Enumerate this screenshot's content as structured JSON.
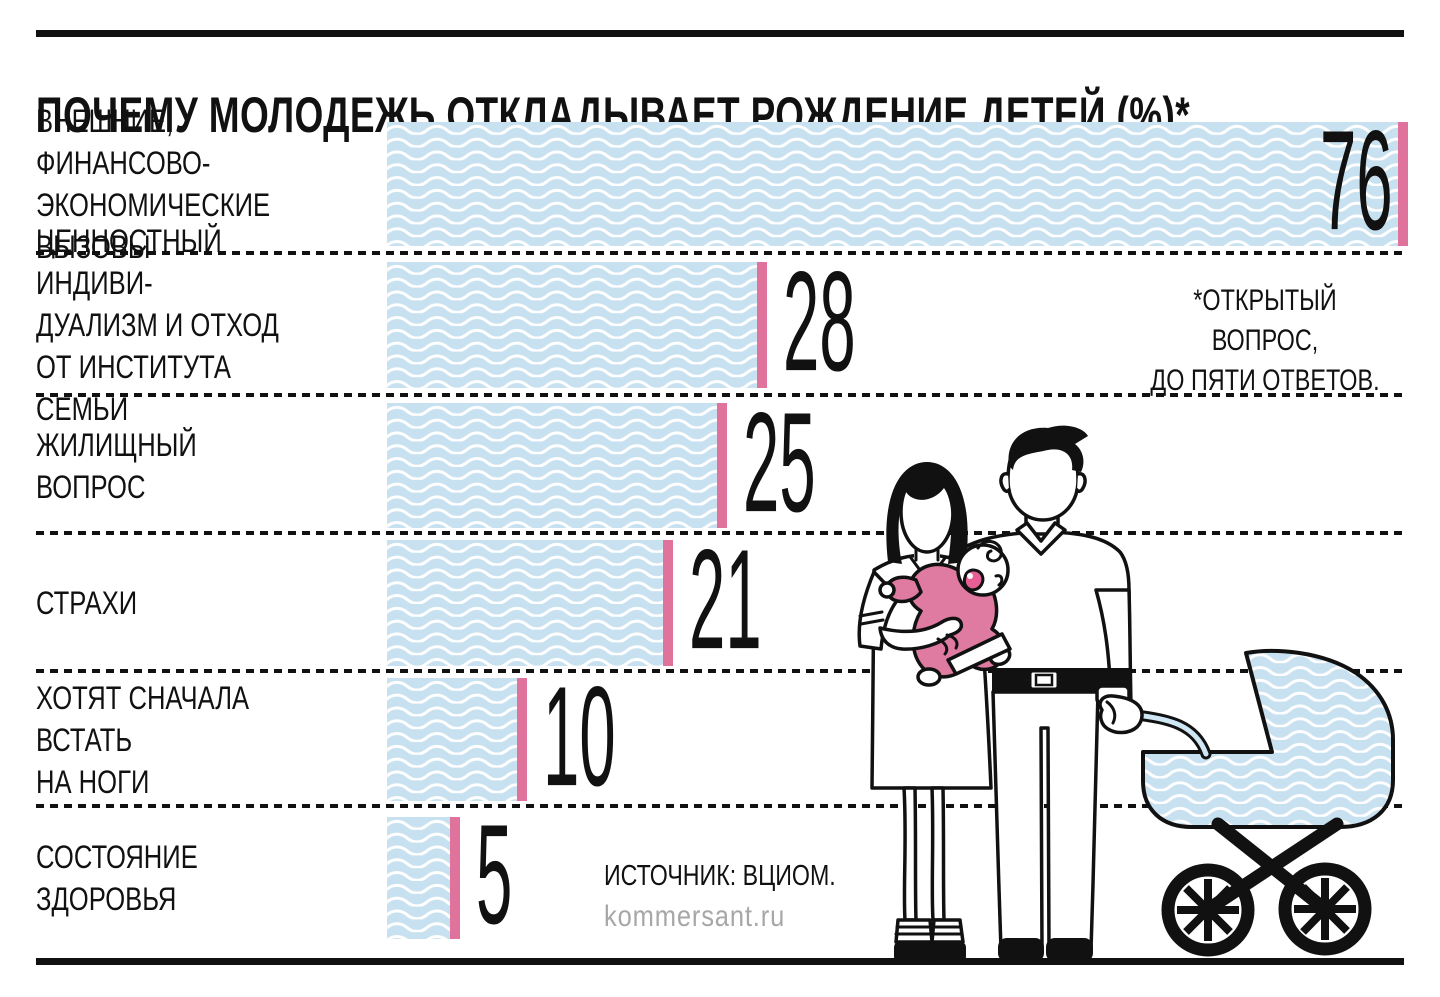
{
  "header": {
    "title": "ПОЧЕМУ МОЛОДЕЖЬ ОТКЛАДЫВАЕТ РОЖДЕНИЕ ДЕТЕЙ (%)*"
  },
  "chart_data": {
    "type": "bar",
    "orientation": "horizontal",
    "title": "ПОЧЕМУ МОЛОДЕЖЬ ОТКЛАДЫВАЕТ РОЖДЕНИЕ ДЕТЕЙ (%)*",
    "unit": "%",
    "xlim": [
      0,
      76
    ],
    "grid": false,
    "categories": [
      "ВНЕШНИЕ, ФИНАНСОВО-ЭКОНОМИЧЕСКИЕ ВЫЗОВЫ",
      "ЦЕННОСТНЫЙ ИНДИВИДУАЛИЗМ И ОТХОД ОТ ИНСТИТУТА СЕМЬИ",
      "ЖИЛИЩНЫЙ ВОПРОС",
      "СТРАХИ",
      "ХОТЯТ СНАЧАЛА ВСТАТЬ НА НОГИ",
      "СОСТОЯНИЕ ЗДОРОВЬЯ"
    ],
    "values": [
      76,
      28,
      25,
      21,
      10,
      5
    ],
    "rows": [
      {
        "label": "ВНЕШНИЕ, ФИНАНСОВО-\nЭКОНОМИЧЕСКИЕ ВЫЗОВЫ",
        "value": 76,
        "value_label_inside": true
      },
      {
        "label": "ЦЕННОСТНЫЙ ИНДИВИ-\nДУАЛИЗМ И ОТХОД\nОТ ИНСТИТУТА СЕМЬИ",
        "value": 28,
        "value_label_inside": false
      },
      {
        "label": "ЖИЛИЩНЫЙ ВОПРОС",
        "value": 25,
        "value_label_inside": false
      },
      {
        "label": "СТРАХИ",
        "value": 21,
        "value_label_inside": false
      },
      {
        "label": "ХОТЯТ СНАЧАЛА ВСТАТЬ\nНА НОГИ",
        "value": 10,
        "value_label_inside": false
      },
      {
        "label": "СОСТОЯНИЕ ЗДОРОВЬЯ",
        "value": 5,
        "value_label_inside": false
      }
    ],
    "colors": {
      "bar_fill": "#c8e1f0",
      "wave_line": "#ffffff",
      "bar_end_cap": "#e0739c",
      "ink": "#111111",
      "credit_gray": "#a7a7a7"
    }
  },
  "footnote": "*ОТКРЫТЫЙ ВОПРОС,\nДО ПЯТИ ОТВЕТОВ.",
  "source": {
    "label": "ИСТОЧНИК: ВЦИОМ.",
    "credit": "kommersant.ru"
  },
  "illustration": {
    "name": "family-with-baby-and-stroller-illustration"
  }
}
